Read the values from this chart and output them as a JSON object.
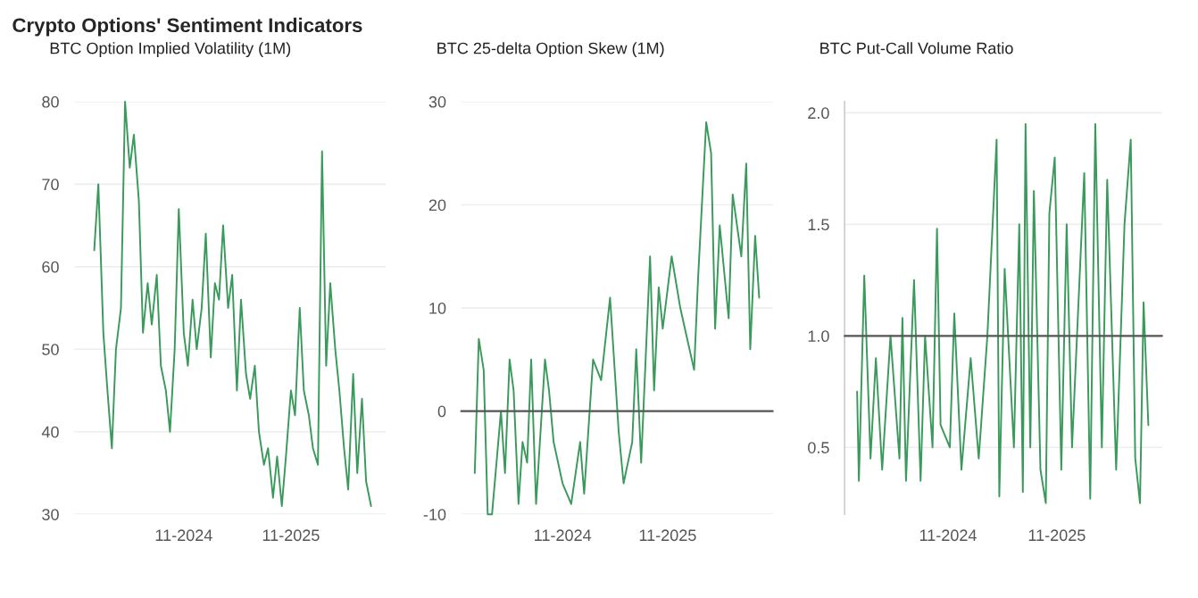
{
  "chart_data": [
    {
      "type": "other",
      "title": "Crypto Options' Sentiment Indicators"
    },
    {
      "type": "line",
      "title": "BTC Option Implied Volatility (1M)",
      "grid": "y",
      "xlim": [
        "2023-10-25",
        "2026-09-20"
      ],
      "ylim": [
        30,
        80
      ],
      "yticks": [
        30,
        40,
        50,
        60,
        70,
        80
      ],
      "xticks": [
        {
          "value": "2024-11-01",
          "label": "11-2024"
        },
        {
          "value": "2025-11-01",
          "label": "11-2025"
        }
      ],
      "x": [
        "2024-01-01",
        "2024-01-15",
        "2024-02-01",
        "2024-02-15",
        "2024-03-01",
        "2024-03-15",
        "2024-04-01",
        "2024-04-15",
        "2024-05-01",
        "2024-05-15",
        "2024-06-01",
        "2024-06-15",
        "2024-07-01",
        "2024-07-15",
        "2024-08-01",
        "2024-08-15",
        "2024-09-01",
        "2024-09-15",
        "2024-10-01",
        "2024-10-15",
        "2024-11-01",
        "2024-11-15",
        "2024-12-01",
        "2024-12-15",
        "2025-01-01",
        "2025-01-15",
        "2025-02-01",
        "2025-02-15",
        "2025-03-01",
        "2025-03-15",
        "2025-04-01",
        "2025-04-15",
        "2025-05-01",
        "2025-05-15",
        "2025-06-01",
        "2025-06-15",
        "2025-07-01",
        "2025-07-15",
        "2025-08-01",
        "2025-08-15",
        "2025-09-01",
        "2025-09-15",
        "2025-10-01",
        "2025-10-15",
        "2025-11-01",
        "2025-11-15",
        "2025-12-01",
        "2025-12-15",
        "2026-01-01",
        "2026-01-15",
        "2026-02-01",
        "2026-02-15",
        "2026-03-01",
        "2026-03-15",
        "2026-04-01",
        "2026-04-15",
        "2026-05-01",
        "2026-05-15",
        "2026-06-01",
        "2026-06-15",
        "2026-07-01",
        "2026-07-15",
        "2026-08-01"
      ],
      "series": [
        {
          "color": "#3a9a5c",
          "values": [
            62,
            70,
            52,
            45,
            38,
            50,
            55,
            80,
            72,
            76,
            68,
            52,
            58,
            53,
            59,
            48,
            45,
            40,
            50,
            67,
            52,
            48,
            56,
            50,
            55,
            64,
            49,
            58,
            56,
            65,
            55,
            59,
            45,
            56,
            47,
            44,
            48,
            40,
            36,
            38,
            32,
            37,
            31,
            37,
            45,
            42,
            55,
            45,
            42,
            38,
            36,
            74,
            48,
            58,
            50,
            45,
            38,
            33,
            47,
            35,
            44,
            34,
            31
          ]
        }
      ]
    },
    {
      "type": "line",
      "title": "BTC 25-delta Option Skew (1M)",
      "grid": "y",
      "xlim": [
        "2023-11-15",
        "2026-11-01"
      ],
      "ylim": [
        -10,
        30
      ],
      "yticks": [
        -10,
        0,
        10,
        20,
        30
      ],
      "xticks": [
        {
          "value": "2024-11-01",
          "label": "11-2024"
        },
        {
          "value": "2025-11-01",
          "label": "11-2025"
        }
      ],
      "ref_lines": [
        {
          "axis": "y",
          "value": 0,
          "label": null,
          "color": "#555555"
        }
      ],
      "x": [
        "2024-01-01",
        "2024-01-15",
        "2024-02-01",
        "2024-02-15",
        "2024-03-01",
        "2024-04-01",
        "2024-04-15",
        "2024-05-01",
        "2024-05-15",
        "2024-06-01",
        "2024-06-15",
        "2024-07-01",
        "2024-07-15",
        "2024-08-01",
        "2024-09-01",
        "2024-09-15",
        "2024-10-01",
        "2024-11-01",
        "2024-12-01",
        "2025-01-01",
        "2025-01-15",
        "2025-02-15",
        "2025-03-15",
        "2025-04-15",
        "2025-05-15",
        "2025-06-01",
        "2025-07-01",
        "2025-07-15",
        "2025-08-01",
        "2025-09-01",
        "2025-09-15",
        "2025-10-01",
        "2025-10-15",
        "2025-11-15",
        "2025-12-15",
        "2026-02-01",
        "2026-02-15",
        "2026-03-15",
        "2026-04-01",
        "2026-04-15",
        "2026-05-01",
        "2026-06-01",
        "2026-06-15",
        "2026-07-15",
        "2026-08-01",
        "2026-08-15",
        "2026-09-01",
        "2026-09-15"
      ],
      "series": [
        {
          "color": "#3a9a5c",
          "values": [
            -6,
            7,
            4,
            -10,
            -10,
            0,
            -6,
            5,
            2,
            -9,
            -3,
            -5,
            5,
            -9,
            5,
            2,
            -3,
            -7,
            -9,
            -3,
            -8,
            5,
            3,
            11,
            -2,
            -7,
            -3,
            6,
            -5,
            15,
            2,
            12,
            8,
            15,
            10,
            4,
            13,
            28,
            25,
            8,
            18,
            9,
            21,
            15,
            24,
            6,
            17,
            11
          ]
        }
      ]
    },
    {
      "type": "line",
      "title": "BTC Put-Call Volume Ratio",
      "grid": "y",
      "xlim": [
        "2023-11-20",
        "2026-10-20"
      ],
      "ylim": [
        0.2,
        2.05
      ],
      "yticks": [
        {
          "value": 0.5,
          "label": "0.5"
        },
        {
          "value": 1,
          "label": "1.0"
        },
        {
          "value": 1.5,
          "label": "1.5"
        },
        {
          "value": 2,
          "label": "2.0"
        }
      ],
      "xticks": [
        {
          "value": "2024-11-01",
          "label": "11-2024"
        },
        {
          "value": "2025-11-01",
          "label": "11-2025"
        }
      ],
      "ref_lines": [
        {
          "axis": "y",
          "value": 1,
          "label": null,
          "color": "#555555"
        }
      ],
      "x": [
        "2024-01-01",
        "2024-01-07",
        "2024-01-25",
        "2024-02-15",
        "2024-03-04",
        "2024-03-25",
        "2024-04-22",
        "2024-05-22",
        "2024-06-01",
        "2024-06-13",
        "2024-07-10",
        "2024-08-01",
        "2024-08-16",
        "2024-09-10",
        "2024-09-25",
        "2024-10-07",
        "2024-11-07",
        "2024-11-22",
        "2024-12-16",
        "2025-01-16",
        "2025-02-12",
        "2025-03-13",
        "2025-04-13",
        "2025-04-22",
        "2025-05-10",
        "2025-06-10",
        "2025-06-28",
        "2025-07-10",
        "2025-07-19",
        "2025-08-04",
        "2025-08-16",
        "2025-09-07",
        "2025-09-25",
        "2025-10-07",
        "2025-10-25",
        "2025-11-16",
        "2025-12-04",
        "2025-12-22",
        "2026-02-01",
        "2026-02-21",
        "2026-03-10",
        "2026-04-01",
        "2026-04-19",
        "2026-05-19",
        "2026-06-16",
        "2026-07-07",
        "2026-07-22",
        "2026-08-07",
        "2026-08-19",
        "2026-09-04"
      ],
      "series": [
        {
          "color": "#3a9a5c",
          "values": [
            0.75,
            0.35,
            1.27,
            0.45,
            0.9,
            0.4,
            1.0,
            0.45,
            1.08,
            0.35,
            1.25,
            0.35,
            1.0,
            0.5,
            1.48,
            0.6,
            0.5,
            1.1,
            0.4,
            0.9,
            0.45,
            1.0,
            1.88,
            0.28,
            1.3,
            0.5,
            1.5,
            0.3,
            1.95,
            0.5,
            1.65,
            0.4,
            0.25,
            1.55,
            1.8,
            0.4,
            1.5,
            0.5,
            1.73,
            0.27,
            1.95,
            0.5,
            1.7,
            0.4,
            1.5,
            1.88,
            0.45,
            0.25,
            1.15,
            0.6
          ]
        }
      ]
    }
  ]
}
